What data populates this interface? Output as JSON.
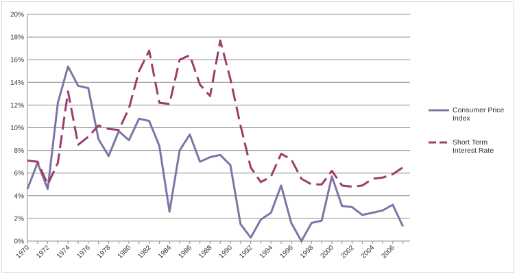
{
  "chart_data": {
    "type": "line",
    "title": "",
    "xlabel": "",
    "ylabel": "",
    "ylim": [
      0,
      0.2
    ],
    "y_ticks": [
      "0%",
      "2%",
      "4%",
      "6%",
      "8%",
      "10%",
      "12%",
      "14%",
      "16%",
      "18%",
      "20%"
    ],
    "x_ticks": [
      "1970",
      "1972",
      "1974",
      "1976",
      "1978",
      "1980",
      "1982",
      "1984",
      "1986",
      "1988",
      "1990",
      "1992",
      "1994",
      "1996",
      "1998",
      "2000",
      "2002",
      "2004",
      "2006"
    ],
    "x": [
      1970,
      1971,
      1972,
      1973,
      1974,
      1975,
      1976,
      1977,
      1978,
      1979,
      1980,
      1981,
      1982,
      1983,
      1984,
      1985,
      1986,
      1987,
      1988,
      1989,
      1990,
      1991,
      1992,
      1993,
      1994,
      1995,
      1996,
      1997,
      1998,
      1999,
      2000,
      2001,
      2002,
      2003,
      2004,
      2005,
      2006,
      2007
    ],
    "grid": "horizontal",
    "legend_position": "right",
    "series": [
      {
        "name": "Consumer Price Index",
        "color": "#7b76a6",
        "style": "solid",
        "values": [
          0.046,
          0.069,
          0.046,
          0.122,
          0.154,
          0.137,
          0.135,
          0.09,
          0.075,
          0.097,
          0.089,
          0.108,
          0.106,
          0.084,
          0.026,
          0.08,
          0.094,
          0.07,
          0.074,
          0.076,
          0.067,
          0.015,
          0.003,
          0.019,
          0.025,
          0.049,
          0.016,
          -0.001,
          0.016,
          0.018,
          0.057,
          0.031,
          0.03,
          0.023,
          0.025,
          0.027,
          0.032,
          0.013
        ]
      },
      {
        "name": "Short Term Interest Rate",
        "color": "#9c3c6e",
        "style": "dashed",
        "values": [
          0.071,
          0.07,
          0.05,
          0.069,
          0.132,
          0.085,
          0.092,
          0.102,
          0.099,
          0.098,
          0.117,
          0.15,
          0.168,
          0.122,
          0.121,
          0.16,
          0.164,
          0.138,
          0.128,
          0.177,
          0.143,
          0.102,
          0.065,
          0.052,
          0.057,
          0.077,
          0.072,
          0.055,
          0.05,
          0.05,
          0.062,
          0.049,
          0.048,
          0.049,
          0.055,
          0.056,
          0.059,
          0.065
        ]
      }
    ]
  }
}
